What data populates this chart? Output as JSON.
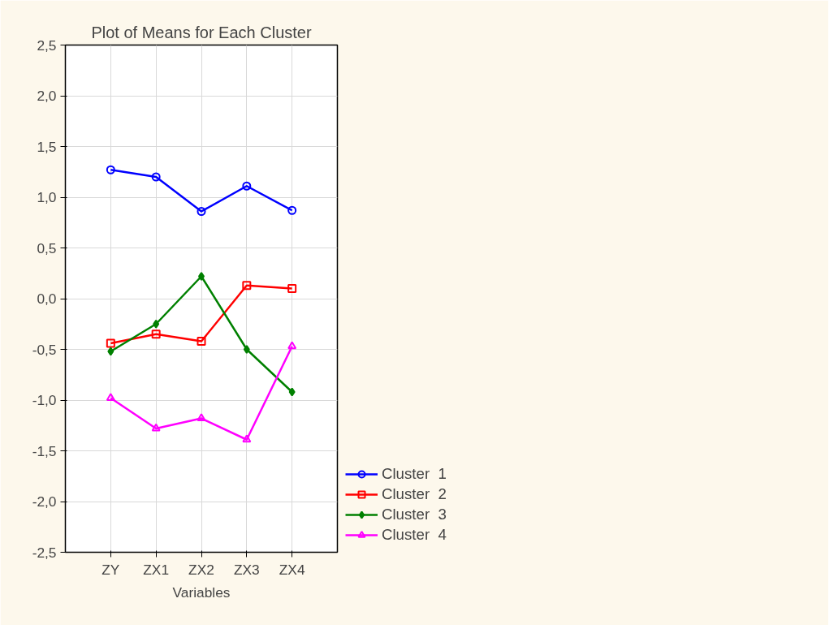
{
  "chart_data": {
    "type": "line",
    "title": "Plot of Means for Each Cluster",
    "xlabel": "Variables",
    "categories": [
      "ZY",
      "ZX1",
      "ZX2",
      "ZX3",
      "ZX4"
    ],
    "series": [
      {
        "name": "Cluster  1",
        "color": "#0000ff",
        "marker": "circle",
        "values": [
          1.27,
          1.2,
          0.86,
          1.11,
          0.87
        ]
      },
      {
        "name": "Cluster  2",
        "color": "#ff0000",
        "marker": "square",
        "values": [
          -0.44,
          -0.35,
          -0.42,
          0.13,
          0.1
        ]
      },
      {
        "name": "Cluster  3",
        "color": "#008000",
        "marker": "diamond",
        "values": [
          -0.52,
          -0.25,
          0.22,
          -0.5,
          -0.92
        ]
      },
      {
        "name": "Cluster  4",
        "color": "#ff00ff",
        "marker": "triangle",
        "values": [
          -0.98,
          -1.28,
          -1.18,
          -1.39,
          -0.47
        ]
      }
    ],
    "ylim": [
      -2.5,
      2.5
    ],
    "yticks": [
      {
        "value": -2.5,
        "label": "-2,5"
      },
      {
        "value": -2,
        "label": "-2,0"
      },
      {
        "value": -1.5,
        "label": "-1,5"
      },
      {
        "value": -1,
        "label": "-1,0"
      },
      {
        "value": -0.5,
        "label": "-0,5"
      },
      {
        "value": 0,
        "label": "0,0"
      },
      {
        "value": 0.5,
        "label": "0,5"
      },
      {
        "value": 1,
        "label": "1,0"
      },
      {
        "value": 1.5,
        "label": "1,5"
      },
      {
        "value": 2,
        "label": "2,0"
      },
      {
        "value": 2.5,
        "label": "2,5"
      }
    ],
    "grid": true,
    "legend": "bottom right",
    "line_style": "solid"
  }
}
